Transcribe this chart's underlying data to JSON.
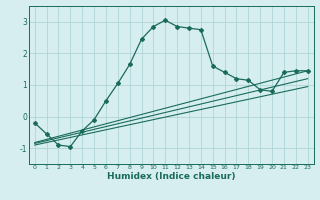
{
  "background_color": "#d6eef0",
  "grid_color": "#afd4d8",
  "line_color": "#1a6b5a",
  "xlabel": "Humidex (Indice chaleur)",
  "xlim": [
    -0.5,
    23.5
  ],
  "ylim": [
    -1.5,
    3.5
  ],
  "yticks": [
    -1,
    0,
    1,
    2,
    3
  ],
  "xticks": [
    0,
    1,
    2,
    3,
    4,
    5,
    6,
    7,
    8,
    9,
    10,
    11,
    12,
    13,
    14,
    15,
    16,
    17,
    18,
    19,
    20,
    21,
    22,
    23
  ],
  "curve1_x": [
    0,
    1,
    2,
    3,
    4,
    5,
    6,
    7,
    8,
    9,
    10,
    11,
    12,
    13,
    14,
    15,
    16,
    17,
    18,
    19,
    20,
    21,
    22,
    23
  ],
  "curve1_y": [
    -0.2,
    -0.55,
    -0.9,
    -0.95,
    -0.45,
    -0.1,
    0.5,
    1.05,
    1.65,
    2.45,
    2.85,
    3.05,
    2.85,
    2.8,
    2.75,
    1.6,
    1.4,
    1.2,
    1.15,
    0.85,
    0.8,
    1.4,
    1.45,
    1.45
  ],
  "line1_x": [
    0,
    23
  ],
  "line1_y": [
    -0.85,
    1.2
  ],
  "line2_x": [
    0,
    23
  ],
  "line2_y": [
    -0.9,
    0.95
  ],
  "line3_x": [
    0,
    23
  ],
  "line3_y": [
    -0.82,
    1.45
  ]
}
